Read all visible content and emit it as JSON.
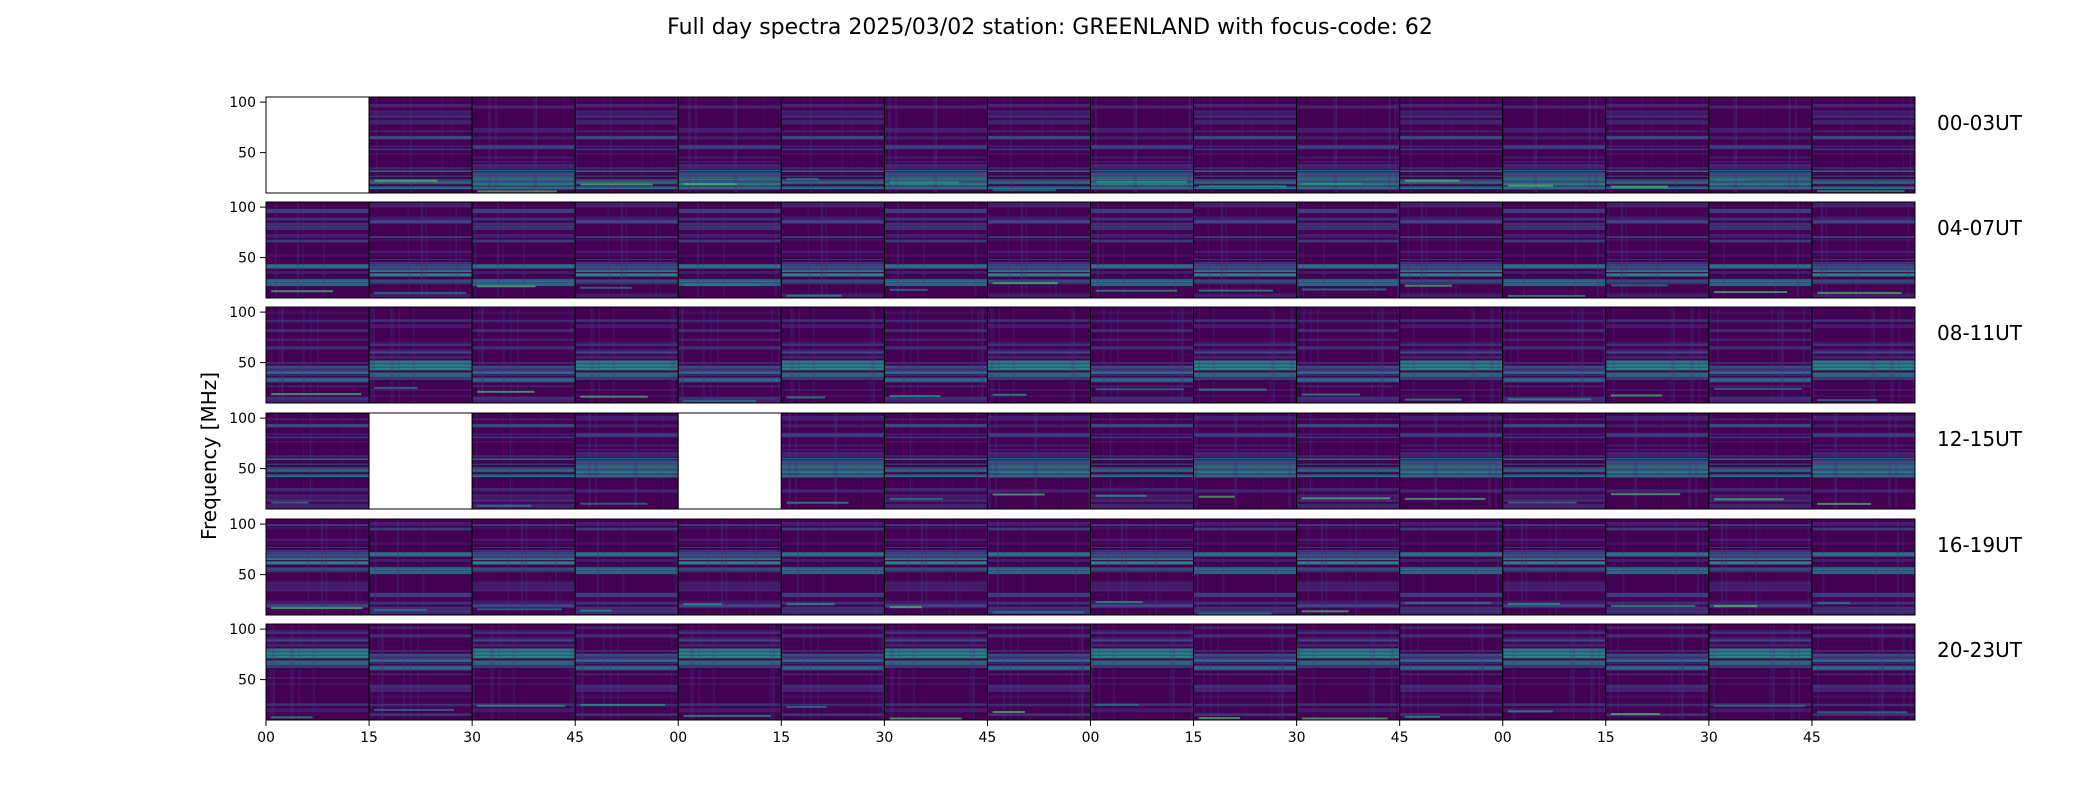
{
  "chart_data": {
    "type": "heatmap",
    "title": "Full day spectra 2025/03/02 station: GREENLAND with focus-code: 62",
    "ylabel": "Frequency [MHz]",
    "xlabel": "",
    "ylim": [
      10,
      105
    ],
    "y_ticks": [
      "100",
      "50"
    ],
    "x_tick_labels": [
      "00",
      "15",
      "30",
      "45",
      "00",
      "15",
      "30",
      "45",
      "00",
      "15",
      "30",
      "45",
      "00",
      "15",
      "30",
      "45"
    ],
    "row_labels": [
      "00-03UT",
      "04-07UT",
      "08-11UT",
      "12-15UT",
      "16-19UT",
      "20-23UT"
    ],
    "panels_per_row": 16,
    "panel_minutes": 15,
    "colormap": "viridis",
    "empty_panels": [
      {
        "row": 0,
        "panel": 0
      },
      {
        "row": 3,
        "panel": 1
      },
      {
        "row": 3,
        "panel": 4
      }
    ],
    "colors": {
      "background": "#440154",
      "colormap_stops": [
        "#440154",
        "#46317e",
        "#365b8c",
        "#277f8e",
        "#1fa187",
        "#4ac16d",
        "#a0da39",
        "#fde725"
      ]
    }
  }
}
